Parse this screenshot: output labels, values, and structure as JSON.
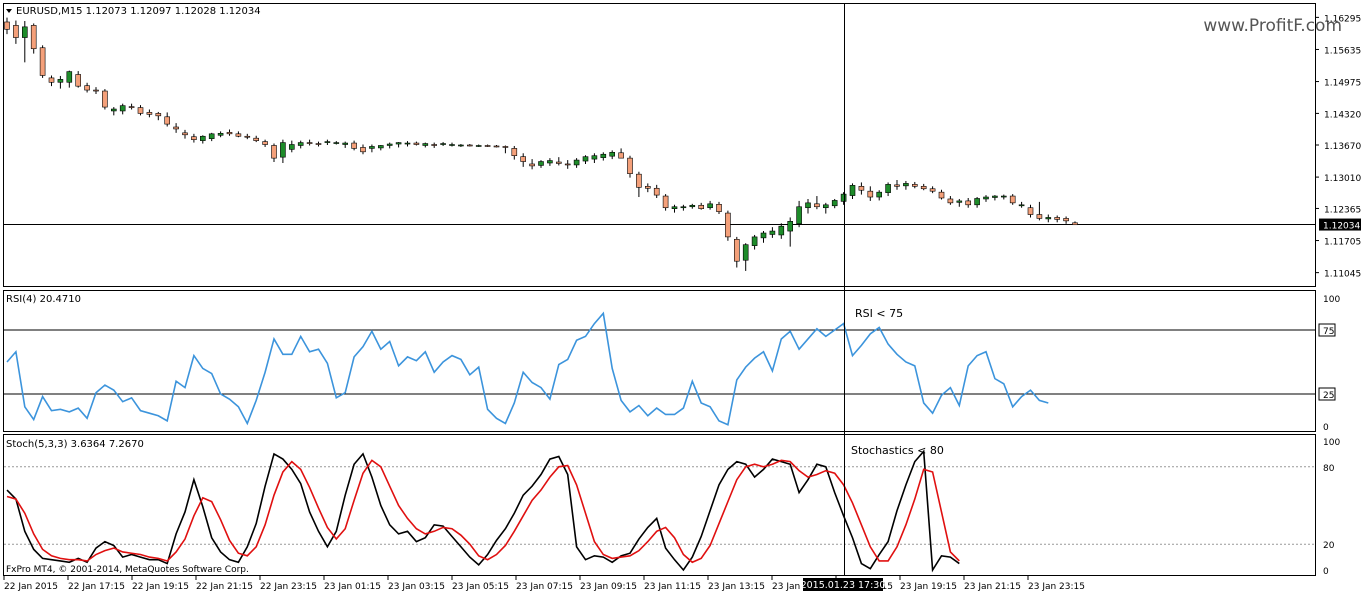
{
  "main": {
    "header": "EURUSD,M15  1.12073 1.12097 1.12028 1.12034",
    "watermark": "www.ProfitF.com",
    "y_labels": [
      "1.16295",
      "1.15635",
      "1.14975",
      "1.14320",
      "1.13670",
      "1.13010",
      "1.12365",
      "1.11705",
      "1.11045"
    ],
    "current_price_label": "1.12034",
    "current_price": 1.12034,
    "ylim": [
      1.1077,
      1.1657
    ],
    "up_color": "#1e8c2a",
    "down_color": "#f4a07a"
  },
  "rsi": {
    "header": "RSI(4) 20.4710",
    "annotation": "RSI < 75",
    "y_labels": [
      "100",
      "75",
      "25",
      "0"
    ],
    "levels": [
      75,
      25
    ],
    "color": "#3c94dc"
  },
  "stoch": {
    "header": "Stoch(5,3,3) 3.6364 7.2670",
    "annotation": "Stochastics < 80",
    "y_labels": [
      "100",
      "80",
      "20",
      "0"
    ],
    "levels": [
      80,
      20
    ],
    "main_color": "#000000",
    "signal_color": "#e01010"
  },
  "footer": {
    "copyright": "FxPro MT4, © 2001-2014, MetaQuotes Software Corp.",
    "crosshair_time": "2015.01.23 17:30",
    "time_labels": [
      "22 Jan 2015",
      "22 Jan 17:15",
      "22 Jan 19:15",
      "22 Jan 21:15",
      "22 Jan 23:15",
      "23 Jan 01:15",
      "23 Jan 03:15",
      "23 Jan 05:15",
      "23 Jan 07:15",
      "23 Jan 09:15",
      "23 Jan 11:15",
      "23 Jan 13:15",
      "23 Jan 15:15",
      "23 Jan 17:15",
      "23 Jan 19:15",
      "23 Jan 21:15",
      "23 Jan 23:15"
    ]
  },
  "chart_data": [
    {
      "type": "candlestick",
      "title": "EURUSD,M15",
      "candles": [
        [
          1.162,
          1.1629,
          1.1595,
          1.1605
        ],
        [
          1.1613,
          1.1623,
          1.1575,
          1.1588
        ],
        [
          1.1588,
          1.1622,
          1.1537,
          1.161
        ],
        [
          1.1613,
          1.1617,
          1.1555,
          1.1565
        ],
        [
          1.1567,
          1.1572,
          1.1505,
          1.151
        ],
        [
          1.1505,
          1.151,
          1.1488,
          1.1496
        ],
        [
          1.1496,
          1.1509,
          1.1483,
          1.1502
        ],
        [
          1.1496,
          1.152,
          1.1485,
          1.1518
        ],
        [
          1.1512,
          1.1519,
          1.1485,
          1.1488
        ],
        [
          1.1489,
          1.1495,
          1.1475,
          1.148
        ],
        [
          1.148,
          1.1486,
          1.1472,
          1.1478
        ],
        [
          1.1478,
          1.1482,
          1.144,
          1.1445
        ],
        [
          1.1437,
          1.1445,
          1.1428,
          1.1441
        ],
        [
          1.1437,
          1.1452,
          1.143,
          1.1448
        ],
        [
          1.1446,
          1.1452,
          1.144,
          1.1444
        ],
        [
          1.1444,
          1.1449,
          1.1428,
          1.1432
        ],
        [
          1.1434,
          1.144,
          1.1424,
          1.143
        ],
        [
          1.1432,
          1.1435,
          1.1418,
          1.1427
        ],
        [
          1.1425,
          1.1434,
          1.1405,
          1.141
        ],
        [
          1.1404,
          1.1412,
          1.1392,
          1.14
        ],
        [
          1.1392,
          1.1398,
          1.138,
          1.1388
        ],
        [
          1.1384,
          1.139,
          1.1372,
          1.1378
        ],
        [
          1.1376,
          1.1387,
          1.137,
          1.1385
        ],
        [
          1.138,
          1.1392,
          1.1375,
          1.139
        ],
        [
          1.1387,
          1.1395,
          1.1383,
          1.1391
        ],
        [
          1.1393,
          1.1399,
          1.1386,
          1.139
        ],
        [
          1.139,
          1.1395,
          1.1383,
          1.1385
        ],
        [
          1.1385,
          1.139,
          1.1379,
          1.1383
        ],
        [
          1.1381,
          1.1386,
          1.1373,
          1.1376
        ],
        [
          1.1374,
          1.1378,
          1.1363,
          1.1368
        ],
        [
          1.1366,
          1.137,
          1.1332,
          1.134
        ],
        [
          1.1342,
          1.1378,
          1.133,
          1.1372
        ],
        [
          1.1358,
          1.1376,
          1.1352,
          1.1368
        ],
        [
          1.1366,
          1.1376,
          1.136,
          1.1372
        ],
        [
          1.1372,
          1.1378,
          1.1366,
          1.137
        ],
        [
          1.137,
          1.1374,
          1.1364,
          1.1369
        ],
        [
          1.1372,
          1.1378,
          1.1367,
          1.1374
        ],
        [
          1.1371,
          1.1375,
          1.1368,
          1.1372
        ],
        [
          1.1368,
          1.1374,
          1.1361,
          1.1371
        ],
        [
          1.1371,
          1.1376,
          1.1356,
          1.136
        ],
        [
          1.1362,
          1.1368,
          1.1348,
          1.1353
        ],
        [
          1.136,
          1.1368,
          1.1352,
          1.1364
        ],
        [
          1.1361,
          1.1367,
          1.1356,
          1.1366
        ],
        [
          1.1366,
          1.1372,
          1.136,
          1.1369
        ],
        [
          1.1369,
          1.1373,
          1.1362,
          1.1372
        ],
        [
          1.1371,
          1.1375,
          1.1364,
          1.1371
        ],
        [
          1.1371,
          1.1374,
          1.1366,
          1.1368
        ],
        [
          1.1366,
          1.1372,
          1.1362,
          1.137
        ],
        [
          1.1368,
          1.1372,
          1.1361,
          1.1367
        ],
        [
          1.1368,
          1.1373,
          1.1365,
          1.137
        ],
        [
          1.1368,
          1.1372,
          1.1364,
          1.1368
        ],
        [
          1.1366,
          1.1369,
          1.1363,
          1.1367
        ],
        [
          1.1367,
          1.1369,
          1.1364,
          1.1366
        ],
        [
          1.1366,
          1.1368,
          1.1363,
          1.1366
        ],
        [
          1.1366,
          1.1368,
          1.1363,
          1.1365
        ],
        [
          1.1365,
          1.1367,
          1.1362,
          1.1364
        ],
        [
          1.1364,
          1.1366,
          1.135,
          1.1363
        ],
        [
          1.136,
          1.1365,
          1.1337,
          1.1345
        ],
        [
          1.1343,
          1.135,
          1.1322,
          1.1333
        ],
        [
          1.1328,
          1.1338,
          1.1317,
          1.1324
        ],
        [
          1.1325,
          1.1336,
          1.132,
          1.1333
        ],
        [
          1.133,
          1.134,
          1.1324,
          1.1335
        ],
        [
          1.1332,
          1.1342,
          1.1325,
          1.1329
        ],
        [
          1.1328,
          1.1336,
          1.1318,
          1.1326
        ],
        [
          1.1326,
          1.134,
          1.132,
          1.1336
        ],
        [
          1.1334,
          1.1346,
          1.1328,
          1.1343
        ],
        [
          1.1338,
          1.135,
          1.133,
          1.1345
        ],
        [
          1.1341,
          1.1352,
          1.1335,
          1.1348
        ],
        [
          1.1344,
          1.1356,
          1.1338,
          1.1352
        ],
        [
          1.1351,
          1.136,
          1.1342,
          1.134
        ],
        [
          1.134,
          1.1345,
          1.13,
          1.1308
        ],
        [
          1.1307,
          1.1312,
          1.126,
          1.128
        ],
        [
          1.1282,
          1.1288,
          1.127,
          1.1278
        ],
        [
          1.1278,
          1.1285,
          1.1258,
          1.1264
        ],
        [
          1.1262,
          1.1266,
          1.1232,
          1.1238
        ],
        [
          1.1236,
          1.1244,
          1.1228,
          1.124
        ],
        [
          1.1238,
          1.1244,
          1.1232,
          1.124
        ],
        [
          1.124,
          1.1246,
          1.1236,
          1.1243
        ],
        [
          1.1243,
          1.1248,
          1.1234,
          1.1236
        ],
        [
          1.1238,
          1.1252,
          1.1234,
          1.1246
        ],
        [
          1.1245,
          1.125,
          1.1225,
          1.123
        ],
        [
          1.1227,
          1.1232,
          1.117,
          1.1178
        ],
        [
          1.1173,
          1.1178,
          1.1115,
          1.1128
        ],
        [
          1.113,
          1.1165,
          1.1108,
          1.1162
        ],
        [
          1.116,
          1.1182,
          1.1152,
          1.1178
        ],
        [
          1.1176,
          1.119,
          1.1166,
          1.1186
        ],
        [
          1.1183,
          1.1198,
          1.1176,
          1.119
        ],
        [
          1.1182,
          1.1206,
          1.1174,
          1.12
        ],
        [
          1.119,
          1.1218,
          1.1158,
          1.121
        ],
        [
          1.1205,
          1.1252,
          1.1198,
          1.124
        ],
        [
          1.1238,
          1.1256,
          1.1226,
          1.1248
        ],
        [
          1.1246,
          1.1262,
          1.1235,
          1.124
        ],
        [
          1.1238,
          1.1248,
          1.1226,
          1.1244
        ],
        [
          1.1242,
          1.1256,
          1.1237,
          1.1253
        ],
        [
          1.1251,
          1.127,
          1.1244,
          1.1266
        ],
        [
          1.1263,
          1.1288,
          1.1256,
          1.1284
        ],
        [
          1.1282,
          1.129,
          1.1265,
          1.1274
        ],
        [
          1.1272,
          1.1282,
          1.1252,
          1.126
        ],
        [
          1.126,
          1.1274,
          1.1253,
          1.127
        ],
        [
          1.1269,
          1.129,
          1.1262,
          1.1286
        ],
        [
          1.1285,
          1.1295,
          1.1275,
          1.1282
        ],
        [
          1.1283,
          1.1293,
          1.1275,
          1.1288
        ],
        [
          1.1286,
          1.1291,
          1.1278,
          1.1282
        ],
        [
          1.1282,
          1.1287,
          1.1274,
          1.1277
        ],
        [
          1.1277,
          1.1282,
          1.1268,
          1.1272
        ],
        [
          1.127,
          1.1275,
          1.1255,
          1.1258
        ],
        [
          1.1256,
          1.1262,
          1.1244,
          1.1248
        ],
        [
          1.1249,
          1.1256,
          1.124,
          1.1252
        ],
        [
          1.1252,
          1.1258,
          1.1238,
          1.1244
        ],
        [
          1.1244,
          1.126,
          1.1238,
          1.1257
        ],
        [
          1.1256,
          1.1264,
          1.125,
          1.126
        ],
        [
          1.1259,
          1.1264,
          1.1253,
          1.1262
        ],
        [
          1.126,
          1.1265,
          1.1255,
          1.1262
        ],
        [
          1.1262,
          1.1266,
          1.1244,
          1.1248
        ],
        [
          1.1244,
          1.125,
          1.1238,
          1.1244
        ],
        [
          1.1238,
          1.1244,
          1.1218,
          1.1224
        ],
        [
          1.1224,
          1.125,
          1.1212,
          1.1216
        ],
        [
          1.1215,
          1.1224,
          1.1208,
          1.1218
        ],
        [
          1.1218,
          1.1222,
          1.1208,
          1.1214
        ],
        [
          1.1216,
          1.122,
          1.1205,
          1.1211
        ],
        [
          1.1207,
          1.121,
          1.1203,
          1.1203
        ]
      ]
    },
    {
      "type": "line",
      "title": "RSI(4) 20.4710",
      "ylim": [
        0,
        100
      ],
      "series": [
        {
          "values": [
            50,
            58,
            15,
            5,
            23,
            12,
            13,
            11,
            14,
            6,
            26,
            32,
            28,
            19,
            22,
            12,
            10,
            8,
            4,
            35,
            30,
            55,
            45,
            41,
            25,
            21,
            15,
            2,
            20,
            42,
            68,
            56,
            56,
            70,
            58,
            60,
            49,
            22,
            26,
            54,
            62,
            74,
            60,
            66,
            47,
            54,
            51,
            58,
            42,
            50,
            55,
            52,
            40,
            46,
            13,
            6,
            2,
            18,
            42,
            34,
            30,
            21,
            48,
            52,
            67,
            70,
            80,
            88,
            45,
            20,
            11,
            16,
            8,
            14,
            9,
            9,
            14,
            35,
            18,
            15,
            4,
            1,
            36,
            46,
            53,
            58,
            43,
            68,
            74,
            60,
            68,
            76,
            70,
            75,
            80,
            55,
            63,
            72,
            77,
            64,
            56,
            50,
            47,
            18,
            10,
            24,
            30,
            16,
            47,
            55,
            58,
            37,
            33,
            15,
            23,
            28,
            20,
            18
          ]
        }
      ]
    },
    {
      "type": "line",
      "title": "Stoch(5,3,3) 3.6364 7.2670",
      "ylim": [
        0,
        100
      ],
      "series": [
        {
          "values": [
            62,
            55,
            30,
            16,
            9,
            8,
            7,
            6,
            9,
            6,
            17,
            22,
            19,
            10,
            12,
            10,
            8,
            8,
            5,
            28,
            45,
            70,
            49,
            25,
            14,
            8,
            6,
            18,
            36,
            65,
            90,
            86,
            78,
            67,
            45,
            30,
            18,
            30,
            58,
            82,
            90,
            72,
            50,
            35,
            28,
            30,
            22,
            25,
            35,
            34,
            26,
            18,
            10,
            4,
            12,
            23,
            32,
            44,
            58,
            65,
            74,
            86,
            88,
            74,
            18,
            8,
            11,
            10,
            6,
            11,
            13,
            24,
            33,
            40,
            17,
            8,
            0,
            10,
            26,
            46,
            66,
            78,
            84,
            82,
            72,
            78,
            86,
            84,
            82,
            60,
            70,
            82,
            80,
            60,
            42,
            25,
            5,
            1,
            12,
            22,
            46,
            66,
            84,
            92,
            0,
            11,
            10,
            5
          ]
        },
        {
          "values": [
            57,
            55,
            44,
            28,
            16,
            11,
            9,
            8,
            8,
            7,
            12,
            15,
            17,
            14,
            13,
            12,
            10,
            9,
            7,
            14,
            24,
            42,
            56,
            53,
            39,
            23,
            13,
            11,
            18,
            35,
            58,
            76,
            84,
            78,
            64,
            48,
            33,
            24,
            32,
            54,
            75,
            85,
            80,
            65,
            50,
            40,
            32,
            28,
            30,
            33,
            32,
            27,
            20,
            11,
            8,
            12,
            19,
            30,
            42,
            54,
            62,
            72,
            80,
            81,
            66,
            44,
            22,
            12,
            9,
            10,
            11,
            15,
            22,
            30,
            33,
            25,
            12,
            6,
            9,
            19,
            36,
            53,
            70,
            80,
            82,
            80,
            82,
            85,
            84,
            77,
            72,
            74,
            77,
            75,
            66,
            52,
            35,
            18,
            7,
            7,
            18,
            35,
            55,
            78,
            76,
            45,
            14,
            7
          ]
        }
      ]
    }
  ]
}
